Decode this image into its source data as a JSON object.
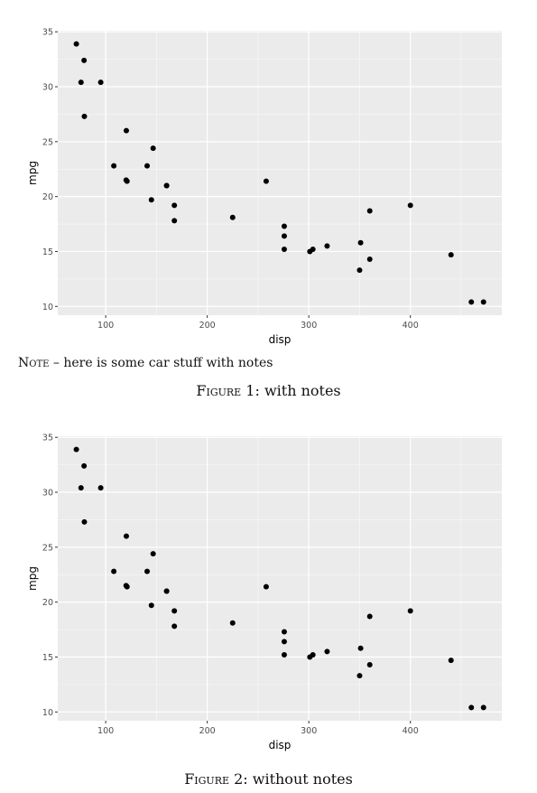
{
  "chart_data": [
    {
      "type": "scatter",
      "xlabel": "disp",
      "ylabel": "mpg",
      "xlim": [
        52.8,
        490.0
      ],
      "ylim": [
        9.2,
        35.1
      ],
      "x_ticks": [
        100,
        200,
        300,
        400
      ],
      "y_ticks": [
        10,
        15,
        20,
        25,
        30,
        35
      ],
      "grid": true,
      "x": [
        160,
        160,
        108,
        258,
        360,
        225,
        360,
        146.7,
        140.8,
        167.6,
        167.6,
        275.8,
        275.8,
        275.8,
        472,
        460,
        440,
        78.7,
        75.7,
        71.1,
        120.1,
        318,
        304,
        350,
        400,
        79,
        120.3,
        95.1,
        351,
        145,
        301,
        121
      ],
      "y": [
        21,
        21,
        22.8,
        21.4,
        18.7,
        18.1,
        14.3,
        24.4,
        22.8,
        19.2,
        17.8,
        16.4,
        17.3,
        15.2,
        10.4,
        10.4,
        14.7,
        32.4,
        30.4,
        33.9,
        21.5,
        15.5,
        15.2,
        13.3,
        19.2,
        27.3,
        26,
        30.4,
        15.8,
        19.7,
        15,
        21.4
      ]
    },
    {
      "type": "scatter",
      "xlabel": "disp",
      "ylabel": "mpg",
      "xlim": [
        52.8,
        490.0
      ],
      "ylim": [
        9.2,
        35.1
      ],
      "x_ticks": [
        100,
        200,
        300,
        400
      ],
      "y_ticks": [
        10,
        15,
        20,
        25,
        30,
        35
      ],
      "grid": true,
      "x": [
        160,
        160,
        108,
        258,
        360,
        225,
        360,
        146.7,
        140.8,
        167.6,
        167.6,
        275.8,
        275.8,
        275.8,
        472,
        460,
        440,
        78.7,
        75.7,
        71.1,
        120.1,
        318,
        304,
        350,
        400,
        79,
        120.3,
        95.1,
        351,
        145,
        301,
        121
      ],
      "y": [
        21,
        21,
        22.8,
        21.4,
        18.7,
        18.1,
        14.3,
        24.4,
        22.8,
        19.2,
        17.8,
        16.4,
        17.3,
        15.2,
        10.4,
        10.4,
        14.7,
        32.4,
        30.4,
        33.9,
        21.5,
        15.5,
        15.2,
        13.3,
        19.2,
        27.3,
        26,
        30.4,
        15.8,
        19.7,
        15,
        21.4
      ]
    }
  ],
  "figures": [
    {
      "note_label": "Note",
      "note_text": " – here is some car stuff with notes",
      "caption_label": "Figure 1:",
      "caption_text": " with notes"
    },
    {
      "caption_label": "Figure 2:",
      "caption_text": " without notes"
    }
  ]
}
